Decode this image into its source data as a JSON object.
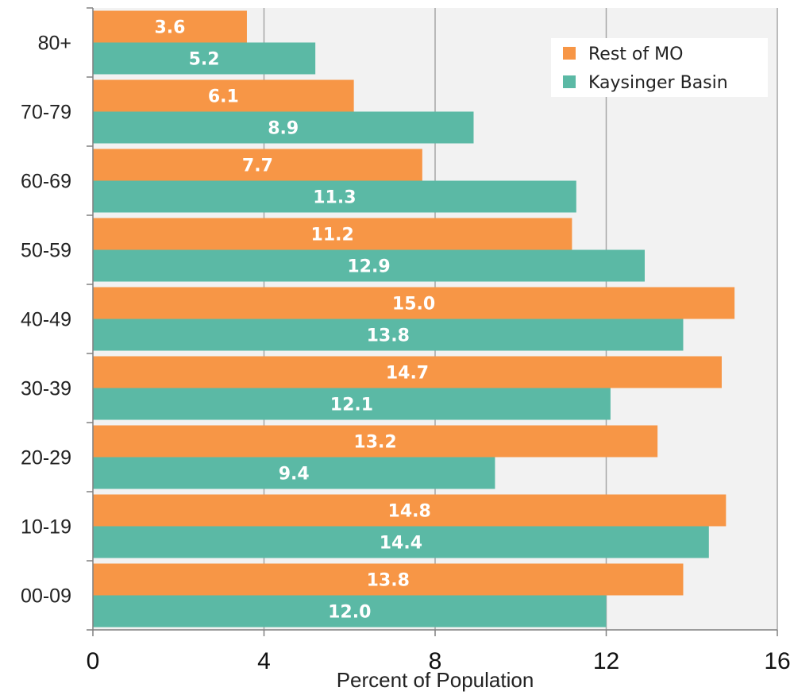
{
  "chart_data": {
    "type": "bar",
    "orientation": "horizontal",
    "categories": [
      "00-09",
      "10-19",
      "20-29",
      "30-39",
      "40-49",
      "50-59",
      "60-69",
      "70-79",
      "80+"
    ],
    "series": [
      {
        "name": "Rest of MO",
        "color": "#F79646",
        "values": [
          13.8,
          14.8,
          13.2,
          14.7,
          15.0,
          11.2,
          7.7,
          6.1,
          3.6
        ],
        "labels": [
          "13.8",
          "14.8",
          "13.2",
          "14.7",
          "15.0",
          "11.2",
          "7.7",
          "6.1",
          "3.6"
        ]
      },
      {
        "name": "Kaysinger Basin",
        "color": "#5BB9A5",
        "values": [
          12.0,
          14.4,
          9.4,
          12.1,
          13.8,
          12.9,
          11.3,
          8.9,
          5.2
        ],
        "labels": [
          "12.0",
          "14.4",
          "9.4",
          "12.1",
          "13.8",
          "12.9",
          "11.3",
          "8.9",
          "5.2"
        ]
      }
    ],
    "xlabel": "Percent of Population",
    "ylabel": "",
    "xlim": [
      0,
      16
    ],
    "xticks": [
      "0",
      "4",
      "8",
      "12",
      "16"
    ],
    "grid": true,
    "legend_position": "top-right",
    "plot_background": "#F2F2F2"
  }
}
